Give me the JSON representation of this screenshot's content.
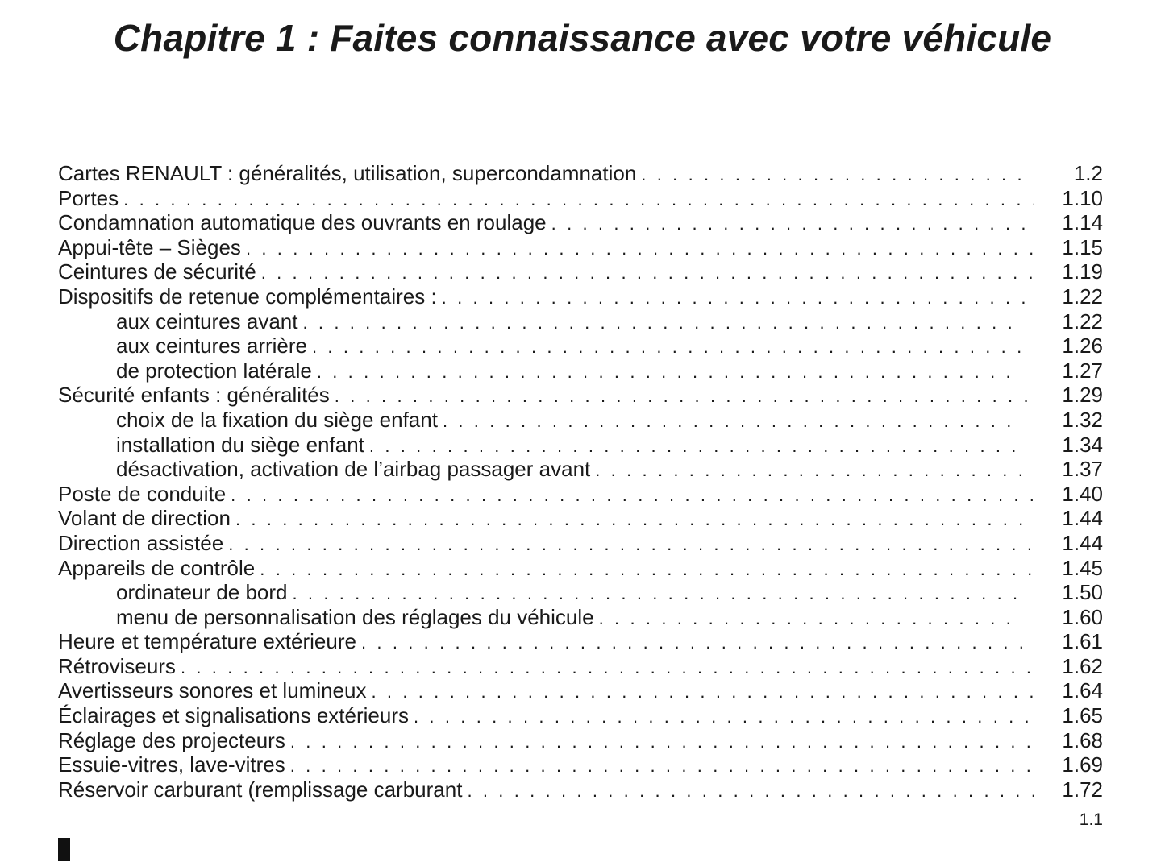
{
  "title": "Chapitre 1 : Faites connaissance avec votre véhicule",
  "entries": [
    {
      "label": "Cartes RENAULT : généralités, utilisation, supercondamnation",
      "page": "1.2",
      "sub": false
    },
    {
      "label": "Portes",
      "page": "1.10",
      "sub": false
    },
    {
      "label": "Condamnation automatique des ouvrants en roulage",
      "page": "1.14",
      "sub": false
    },
    {
      "label": "Appui-tête – Sièges",
      "page": "1.15",
      "sub": false
    },
    {
      "label": "Ceintures de sécurité",
      "page": "1.19",
      "sub": false
    },
    {
      "label": "Dispositifs de retenue complémentaires :",
      "page": "1.22",
      "sub": false
    },
    {
      "label": "aux ceintures avant",
      "page": "1.22",
      "sub": true
    },
    {
      "label": "aux ceintures arrière",
      "page": "1.26",
      "sub": true
    },
    {
      "label": "de protection latérale",
      "page": "1.27",
      "sub": true
    },
    {
      "label": "Sécurité enfants : généralités",
      "page": "1.29",
      "sub": false
    },
    {
      "label": "choix de la fixation du siège enfant",
      "page": "1.32",
      "sub": true
    },
    {
      "label": "installation du siège enfant",
      "page": "1.34",
      "sub": true
    },
    {
      "label": "désactivation, activation de l’airbag passager avant",
      "page": "1.37",
      "sub": true
    },
    {
      "label": "Poste de conduite",
      "page": "1.40",
      "sub": false
    },
    {
      "label": "Volant de direction",
      "page": "1.44",
      "sub": false
    },
    {
      "label": "Direction assistée",
      "page": "1.44",
      "sub": false
    },
    {
      "label": "Appareils de contrôle",
      "page": "1.45",
      "sub": false
    },
    {
      "label": "ordinateur de bord",
      "page": "1.50",
      "sub": true
    },
    {
      "label": "menu de personnalisation des réglages du véhicule",
      "page": "1.60",
      "sub": true
    },
    {
      "label": "Heure et température extérieure",
      "page": "1.61",
      "sub": false
    },
    {
      "label": "Rétroviseurs",
      "page": "1.62",
      "sub": false
    },
    {
      "label": "Avertisseurs sonores et lumineux",
      "page": "1.64",
      "sub": false
    },
    {
      "label": "Éclairages et signalisations extérieurs",
      "page": "1.65",
      "sub": false
    },
    {
      "label": "Réglage des projecteurs",
      "page": "1.68",
      "sub": false
    },
    {
      "label": "Essuie-vitres, lave-vitres",
      "page": "1.69",
      "sub": false
    },
    {
      "label": "Réservoir carburant (remplissage carburant",
      "page": "1.72",
      "sub": false
    }
  ],
  "page_number": "1.1"
}
